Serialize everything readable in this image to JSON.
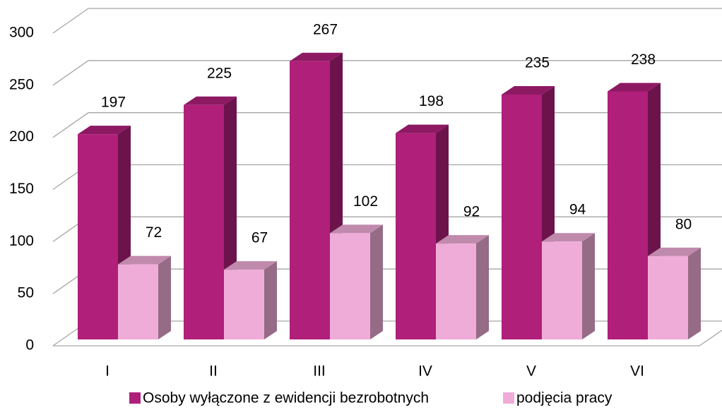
{
  "chart_data": {
    "type": "bar3d",
    "categories": [
      "I",
      "II",
      "III",
      "IV",
      "V",
      "VI"
    ],
    "series": [
      {
        "name": "Osoby wyłączone z ewidencji bezrobotnych",
        "color": "#b01f7a",
        "values": [
          197,
          225,
          267,
          198,
          235,
          238
        ]
      },
      {
        "name": "podjęcia pracy",
        "color": "#f0acd8",
        "values": [
          72,
          67,
          102,
          92,
          94,
          80
        ]
      }
    ],
    "ylim": [
      0,
      300
    ],
    "yticks": [
      0,
      50,
      100,
      150,
      200,
      250,
      300
    ],
    "grid": true,
    "legend": "bottom"
  }
}
